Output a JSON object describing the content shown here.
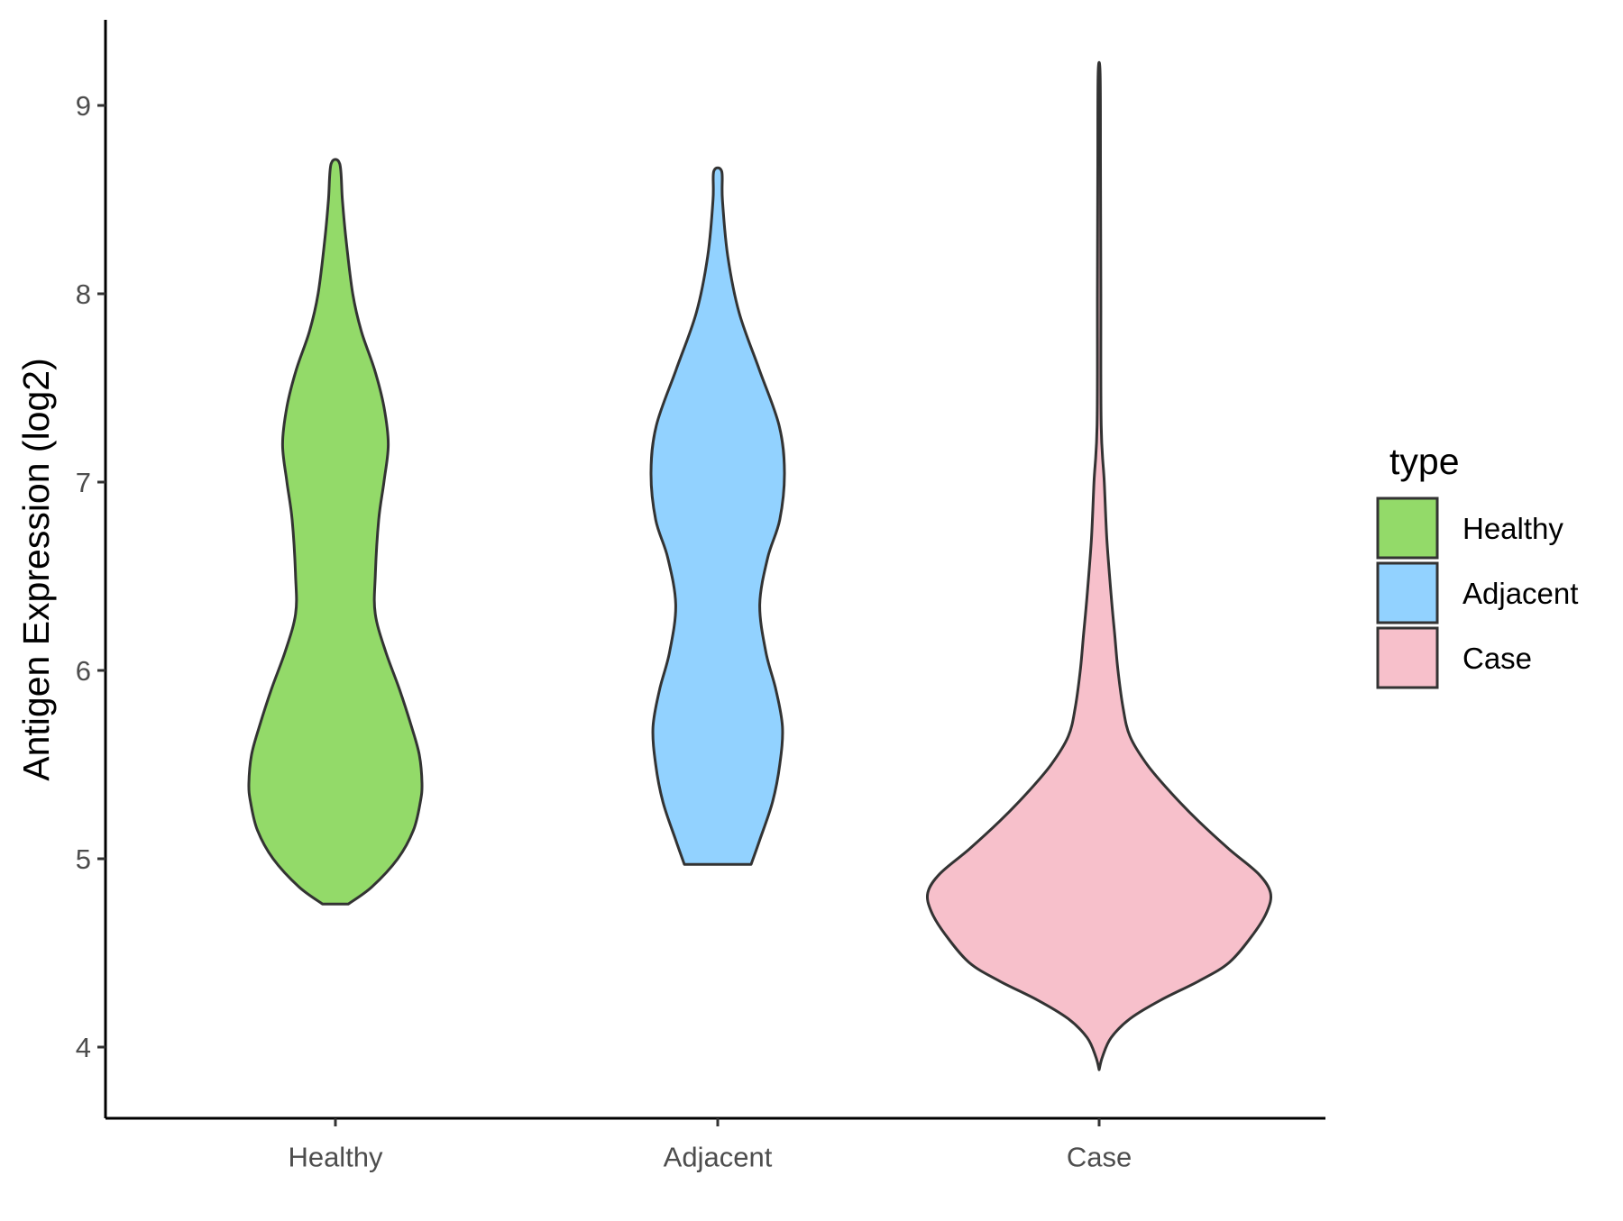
{
  "chart_data": {
    "type": "violin",
    "title": "",
    "xlabel": "",
    "ylabel": "Antigen Expression (log2)",
    "categories": [
      "Healthy",
      "Adjacent",
      "Case"
    ],
    "y_ticks": [
      4,
      5,
      6,
      7,
      8,
      9
    ],
    "ylim": [
      3.6,
      9.45
    ],
    "grid": false,
    "legend": {
      "title": "type",
      "position": "right",
      "entries": [
        "Healthy",
        "Adjacent",
        "Case"
      ]
    },
    "colors": {
      "Healthy": "#93DA69",
      "Adjacent": "#92D2FF",
      "Case": "#F7C0CB",
      "outline": "#333333"
    },
    "series": [
      {
        "category": "Healthy",
        "min": 4.76,
        "max": 8.69,
        "density_profile": [
          [
            4.76,
            0.15
          ],
          [
            4.85,
            0.42
          ],
          [
            5.0,
            0.72
          ],
          [
            5.15,
            0.9
          ],
          [
            5.3,
            0.98
          ],
          [
            5.4,
            1.0
          ],
          [
            5.55,
            0.97
          ],
          [
            5.7,
            0.88
          ],
          [
            5.9,
            0.74
          ],
          [
            6.1,
            0.58
          ],
          [
            6.3,
            0.46
          ],
          [
            6.5,
            0.46
          ],
          [
            6.8,
            0.5
          ],
          [
            7.0,
            0.56
          ],
          [
            7.2,
            0.61
          ],
          [
            7.4,
            0.56
          ],
          [
            7.6,
            0.45
          ],
          [
            7.8,
            0.3
          ],
          [
            8.0,
            0.2
          ],
          [
            8.3,
            0.12
          ],
          [
            8.5,
            0.08
          ],
          [
            8.69,
            0.05
          ]
        ]
      },
      {
        "category": "Adjacent",
        "min": 4.97,
        "max": 8.65,
        "density_profile": [
          [
            4.97,
            0.5
          ],
          [
            5.1,
            0.63
          ],
          [
            5.3,
            0.82
          ],
          [
            5.5,
            0.93
          ],
          [
            5.7,
            0.97
          ],
          [
            5.9,
            0.87
          ],
          [
            6.1,
            0.72
          ],
          [
            6.35,
            0.63
          ],
          [
            6.6,
            0.75
          ],
          [
            6.8,
            0.93
          ],
          [
            7.05,
            1.0
          ],
          [
            7.3,
            0.92
          ],
          [
            7.6,
            0.62
          ],
          [
            7.9,
            0.32
          ],
          [
            8.2,
            0.15
          ],
          [
            8.5,
            0.07
          ],
          [
            8.65,
            0.06
          ]
        ]
      },
      {
        "category": "Case",
        "min": 3.88,
        "max": 9.17,
        "density_profile": [
          [
            3.88,
            0.0
          ],
          [
            3.95,
            0.02
          ],
          [
            4.05,
            0.07
          ],
          [
            4.15,
            0.18
          ],
          [
            4.25,
            0.36
          ],
          [
            4.35,
            0.58
          ],
          [
            4.45,
            0.76
          ],
          [
            4.6,
            0.9
          ],
          [
            4.72,
            0.98
          ],
          [
            4.82,
            1.0
          ],
          [
            4.92,
            0.93
          ],
          [
            5.05,
            0.76
          ],
          [
            5.2,
            0.58
          ],
          [
            5.35,
            0.42
          ],
          [
            5.5,
            0.28
          ],
          [
            5.65,
            0.18
          ],
          [
            5.8,
            0.14
          ],
          [
            6.0,
            0.11
          ],
          [
            6.2,
            0.09
          ],
          [
            6.4,
            0.07
          ],
          [
            6.7,
            0.045
          ],
          [
            7.0,
            0.03
          ],
          [
            7.3,
            0.012
          ],
          [
            8.0,
            0.01
          ],
          [
            8.7,
            0.008
          ],
          [
            9.17,
            0.006
          ]
        ]
      }
    ]
  }
}
